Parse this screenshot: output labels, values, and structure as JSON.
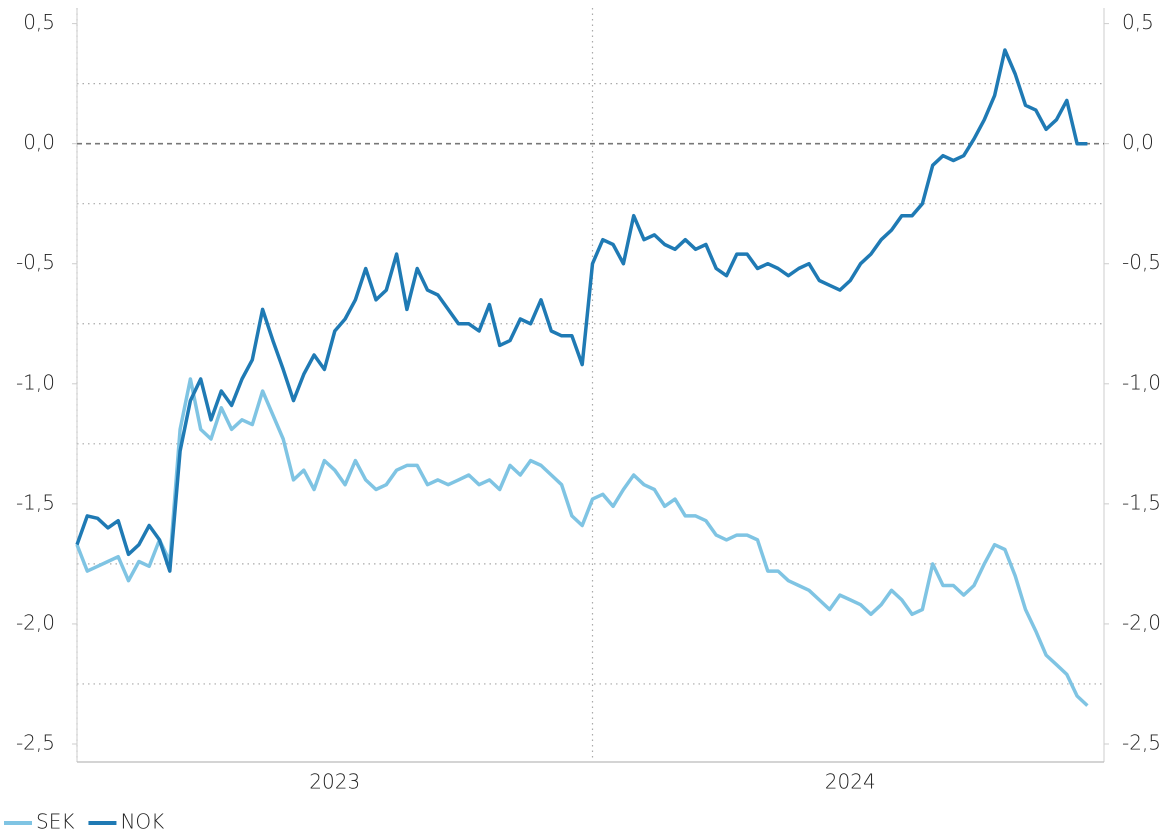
{
  "chart_data": {
    "type": "line",
    "x": [
      2023.0,
      2023.02,
      2023.04,
      2023.06,
      2023.08,
      2023.1,
      2023.12,
      2023.14,
      2023.16,
      2023.18,
      2023.2,
      2023.22,
      2023.24,
      2023.26,
      2023.28,
      2023.3,
      2023.32,
      2023.34,
      2023.36,
      2023.38,
      2023.4,
      2023.42,
      2023.44,
      2023.46,
      2023.48,
      2023.5,
      2023.52,
      2023.54,
      2023.56,
      2023.58,
      2023.6,
      2023.62,
      2023.64,
      2023.66,
      2023.68,
      2023.7,
      2023.72,
      2023.74,
      2023.76,
      2023.78,
      2023.8,
      2023.82,
      2023.84,
      2023.86,
      2023.88,
      2023.9,
      2023.92,
      2023.94,
      2023.96,
      2023.98,
      2024.0,
      2024.02,
      2024.04,
      2024.06,
      2024.08,
      2024.1,
      2024.12,
      2024.14,
      2024.16,
      2024.18,
      2024.2,
      2024.22,
      2024.24,
      2024.26,
      2024.28,
      2024.3,
      2024.32,
      2024.34,
      2024.36,
      2024.38,
      2024.4,
      2024.42,
      2024.44,
      2024.46,
      2024.48,
      2024.5,
      2024.52,
      2024.54,
      2024.56,
      2024.58,
      2024.6,
      2024.62,
      2024.64,
      2024.66,
      2024.68,
      2024.7,
      2024.72,
      2024.74,
      2024.76,
      2024.78,
      2024.8,
      2024.82,
      2024.84,
      2024.86,
      2024.88,
      2024.9,
      2024.92,
      2024.94,
      2024.96
    ],
    "series": [
      {
        "name": "SEK",
        "color": "#7fc4e3",
        "values": [
          -1.67,
          -1.78,
          -1.76,
          -1.74,
          -1.72,
          -1.82,
          -1.74,
          -1.76,
          -1.65,
          -1.74,
          -1.19,
          -0.98,
          -1.19,
          -1.23,
          -1.1,
          -1.19,
          -1.15,
          -1.17,
          -1.03,
          -1.13,
          -1.23,
          -1.4,
          -1.36,
          -1.44,
          -1.32,
          -1.36,
          -1.42,
          -1.32,
          -1.4,
          -1.44,
          -1.42,
          -1.36,
          -1.34,
          -1.34,
          -1.42,
          -1.4,
          -1.42,
          -1.4,
          -1.38,
          -1.42,
          -1.4,
          -1.44,
          -1.34,
          -1.38,
          -1.32,
          -1.34,
          -1.38,
          -1.42,
          -1.55,
          -1.59,
          -1.48,
          -1.46,
          -1.51,
          -1.44,
          -1.38,
          -1.42,
          -1.44,
          -1.51,
          -1.48,
          -1.55,
          -1.55,
          -1.57,
          -1.63,
          -1.65,
          -1.63,
          -1.63,
          -1.65,
          -1.78,
          -1.78,
          -1.82,
          -1.84,
          -1.86,
          -1.9,
          -1.94,
          -1.88,
          -1.9,
          -1.92,
          -1.96,
          -1.92,
          -1.86,
          -1.9,
          -1.96,
          -1.94,
          -1.75,
          -1.84,
          -1.84,
          -1.88,
          -1.84,
          -1.75,
          -1.67,
          -1.69,
          -1.8,
          -1.94,
          -2.03,
          -2.13,
          -2.17,
          -2.21,
          -2.3,
          -2.34
        ]
      },
      {
        "name": "NOK",
        "color": "#1f7ab4",
        "values": [
          -1.67,
          -1.55,
          -1.56,
          -1.6,
          -1.57,
          -1.71,
          -1.67,
          -1.59,
          -1.65,
          -1.78,
          -1.28,
          -1.07,
          -0.98,
          -1.15,
          -1.03,
          -1.09,
          -0.98,
          -0.9,
          -0.69,
          -0.82,
          -0.94,
          -1.07,
          -0.96,
          -0.88,
          -0.94,
          -0.78,
          -0.73,
          -0.65,
          -0.52,
          -0.65,
          -0.61,
          -0.46,
          -0.69,
          -0.52,
          -0.61,
          -0.63,
          -0.69,
          -0.75,
          -0.75,
          -0.78,
          -0.67,
          -0.84,
          -0.82,
          -0.73,
          -0.75,
          -0.65,
          -0.78,
          -0.8,
          -0.8,
          -0.92,
          -0.5,
          -0.4,
          -0.42,
          -0.5,
          -0.3,
          -0.4,
          -0.38,
          -0.42,
          -0.44,
          -0.4,
          -0.44,
          -0.42,
          -0.52,
          -0.55,
          -0.46,
          -0.46,
          -0.52,
          -0.5,
          -0.52,
          -0.55,
          -0.52,
          -0.5,
          -0.57,
          -0.59,
          -0.61,
          -0.57,
          -0.5,
          -0.46,
          -0.4,
          -0.36,
          -0.3,
          -0.3,
          -0.25,
          -0.09,
          -0.05,
          -0.07,
          -0.05,
          0.02,
          0.1,
          0.2,
          0.39,
          0.29,
          0.16,
          0.14,
          0.06,
          0.1,
          0.18,
          0.0,
          0.0
        ]
      }
    ],
    "xlim": [
      2023,
      2025
    ],
    "xticks": [
      2023,
      2024
    ],
    "ylim": [
      -2.575,
      0.565
    ],
    "yticks": [
      {
        "value": 0.5,
        "label": "0,5"
      },
      {
        "value": 0,
        "label": "0,0"
      },
      {
        "value": -0.5,
        "label": "-0,5"
      },
      {
        "value": -1,
        "label": "-1,0"
      },
      {
        "value": -1.5,
        "label": "-1,5"
      },
      {
        "value": -2,
        "label": "-2,0"
      },
      {
        "value": -2.5,
        "label": "-2,5"
      }
    ],
    "y2lim": [
      -2.575,
      0.565
    ],
    "y2ticks": [
      {
        "value": 0.5,
        "label": "0,5"
      },
      {
        "value": 0,
        "label": "0,0"
      },
      {
        "value": -0.5,
        "label": "-0,5"
      },
      {
        "value": -1,
        "label": "-1,0"
      },
      {
        "value": -1.5,
        "label": "-1,5"
      },
      {
        "value": -2,
        "label": "-2,0"
      },
      {
        "value": -2.5,
        "label": "-2,5"
      }
    ],
    "grid_lines": [
      0.25,
      -0.25,
      -0.75,
      -1.25,
      -1.75,
      -2.25
    ],
    "legend": "bottom-left"
  }
}
